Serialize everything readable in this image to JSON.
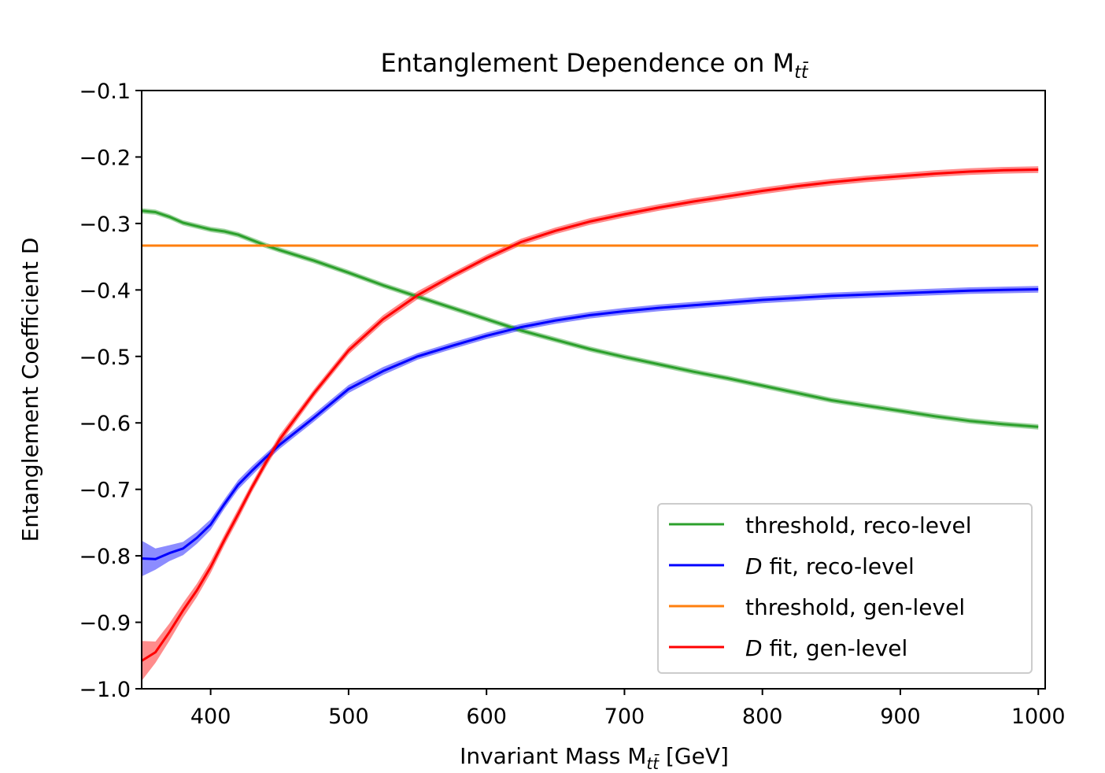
{
  "chart_data": {
    "type": "line",
    "title": "Entanglement Dependence on M",
    "title_sub": "tt̄",
    "xlabel_prefix": "Invariant Mass  M",
    "xlabel_sub": "tt̄",
    "xlabel_suffix": " [GeV]",
    "ylabel": "Entanglement Coefficient  D",
    "xlim": [
      350,
      1005
    ],
    "ylim": [
      -1.0,
      -0.1
    ],
    "x_ticks": [
      400,
      500,
      600,
      700,
      800,
      900,
      1000
    ],
    "x_tick_labels": [
      "400",
      "500",
      "600",
      "700",
      "800",
      "900",
      "1000"
    ],
    "y_ticks": [
      -1.0,
      -0.9,
      -0.8,
      -0.7,
      -0.6,
      -0.5,
      -0.4,
      -0.3,
      -0.2,
      -0.1
    ],
    "y_tick_labels": [
      "−1.0",
      "−0.9",
      "−0.8",
      "−0.7",
      "−0.6",
      "−0.5",
      "−0.4",
      "−0.3",
      "−0.2",
      "−0.1"
    ],
    "grid": false,
    "legend_position": "lower-right",
    "series": [
      {
        "name": "threshold, reco-level",
        "color": "#2ca02c",
        "band": 0.004,
        "x": [
          350,
          360,
          370,
          380,
          390,
          400,
          410,
          420,
          430,
          440,
          450,
          475,
          500,
          525,
          550,
          575,
          600,
          625,
          650,
          675,
          700,
          725,
          750,
          775,
          800,
          825,
          850,
          875,
          900,
          925,
          950,
          975,
          1000
        ],
        "y": [
          -0.281,
          -0.283,
          -0.29,
          -0.299,
          -0.304,
          -0.309,
          -0.312,
          -0.317,
          -0.325,
          -0.333,
          -0.34,
          -0.356,
          -0.374,
          -0.393,
          -0.41,
          -0.427,
          -0.444,
          -0.461,
          -0.475,
          -0.489,
          -0.501,
          -0.512,
          -0.523,
          -0.533,
          -0.544,
          -0.555,
          -0.566,
          -0.574,
          -0.582,
          -0.59,
          -0.597,
          -0.602,
          -0.606
        ]
      },
      {
        "name": "D fit, reco-level",
        "name_italic": "D",
        "name_rest": " fit, reco-level",
        "color": "#0000ff",
        "band_x": [
          350,
          360,
          370,
          380,
          390,
          400,
          410,
          420,
          430,
          440,
          450,
          475,
          500,
          525,
          550,
          575,
          600,
          625,
          650,
          675,
          700,
          725,
          750,
          775,
          800,
          825,
          850,
          875,
          900,
          925,
          950,
          975,
          1000
        ],
        "band_half": [
          0.027,
          0.016,
          0.012,
          0.01,
          0.009,
          0.008,
          0.007,
          0.007,
          0.007,
          0.006,
          0.006,
          0.006,
          0.006,
          0.006,
          0.005,
          0.005,
          0.005,
          0.005,
          0.005,
          0.005,
          0.005,
          0.005,
          0.005,
          0.005,
          0.005,
          0.005,
          0.005,
          0.005,
          0.005,
          0.005,
          0.005,
          0.005,
          0.005
        ],
        "x": [
          350,
          360,
          370,
          380,
          390,
          400,
          410,
          420,
          430,
          440,
          450,
          475,
          500,
          525,
          550,
          575,
          600,
          625,
          650,
          675,
          700,
          725,
          750,
          775,
          800,
          825,
          850,
          875,
          900,
          925,
          950,
          975,
          1000
        ],
        "y": [
          -0.804,
          -0.805,
          -0.796,
          -0.789,
          -0.773,
          -0.753,
          -0.722,
          -0.693,
          -0.672,
          -0.652,
          -0.633,
          -0.592,
          -0.549,
          -0.522,
          -0.5,
          -0.484,
          -0.469,
          -0.456,
          -0.446,
          -0.438,
          -0.432,
          -0.427,
          -0.423,
          -0.419,
          -0.415,
          -0.412,
          -0.409,
          -0.407,
          -0.405,
          -0.403,
          -0.401,
          -0.4,
          -0.399
        ]
      },
      {
        "name": "threshold, gen-level",
        "color": "#ff7f0e",
        "band": 0,
        "x": [
          350,
          1000
        ],
        "y": [
          -0.3333,
          -0.3333
        ]
      },
      {
        "name": "D fit, gen-level",
        "name_italic": "D",
        "name_rest": " fit, gen-level",
        "color": "#ff0000",
        "band_x": [
          350,
          360,
          370,
          380,
          390,
          400,
          410,
          420,
          430,
          440,
          450,
          475,
          500,
          525,
          550,
          575,
          600,
          625,
          650,
          675,
          700,
          725,
          750,
          775,
          800,
          825,
          850,
          875,
          900,
          925,
          950,
          975,
          1000
        ],
        "band_half": [
          0.03,
          0.016,
          0.013,
          0.011,
          0.01,
          0.009,
          0.008,
          0.008,
          0.007,
          0.007,
          0.007,
          0.006,
          0.006,
          0.006,
          0.006,
          0.005,
          0.005,
          0.005,
          0.005,
          0.005,
          0.005,
          0.005,
          0.005,
          0.005,
          0.005,
          0.005,
          0.005,
          0.005,
          0.005,
          0.005,
          0.005,
          0.005,
          0.005
        ],
        "x": [
          350,
          360,
          370,
          380,
          390,
          400,
          410,
          420,
          430,
          440,
          450,
          475,
          500,
          525,
          550,
          575,
          600,
          625,
          650,
          675,
          700,
          725,
          750,
          775,
          800,
          825,
          850,
          875,
          900,
          925,
          950,
          975,
          1000
        ],
        "y": [
          -0.958,
          -0.945,
          -0.915,
          -0.882,
          -0.852,
          -0.817,
          -0.776,
          -0.737,
          -0.697,
          -0.66,
          -0.625,
          -0.555,
          -0.491,
          -0.444,
          -0.408,
          -0.379,
          -0.352,
          -0.328,
          -0.311,
          -0.297,
          -0.286,
          -0.276,
          -0.267,
          -0.259,
          -0.251,
          -0.244,
          -0.238,
          -0.233,
          -0.229,
          -0.225,
          -0.222,
          -0.22,
          -0.219
        ]
      }
    ]
  }
}
